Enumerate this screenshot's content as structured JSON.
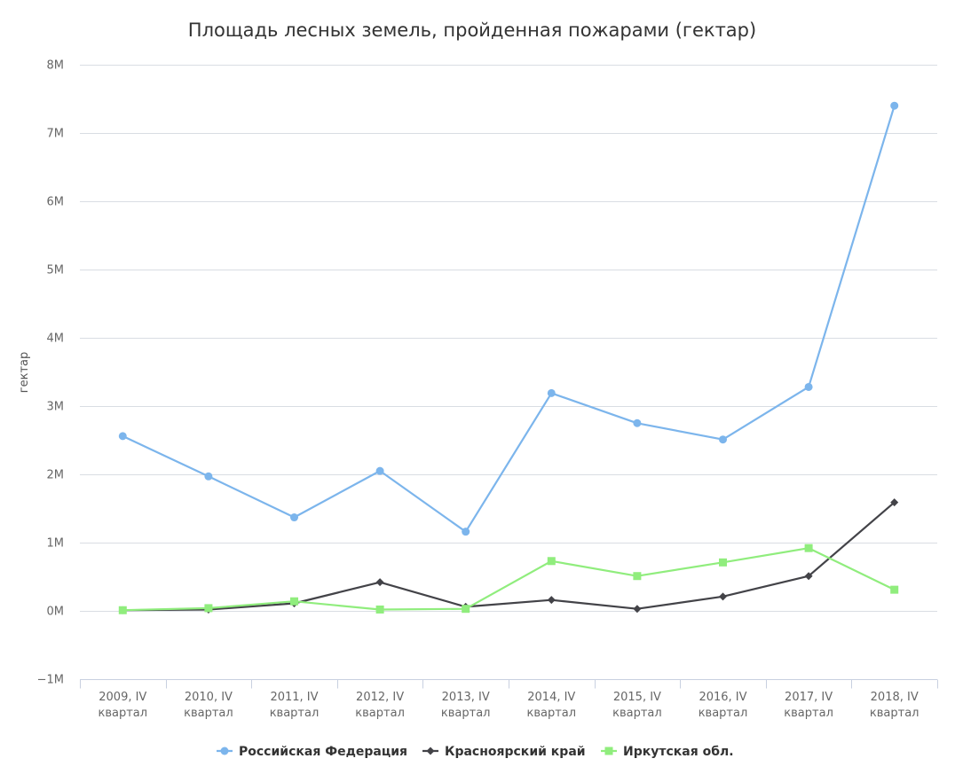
{
  "chart_data": {
    "type": "line",
    "title": "Площадь лесных земель, пройденная пожарами (гектар)",
    "ylabel": "гектар",
    "xlabel": "",
    "categories": [
      [
        "2009, IV",
        "квартал"
      ],
      [
        "2010, IV",
        "квартал"
      ],
      [
        "2011, IV",
        "квартал"
      ],
      [
        "2012, IV",
        "квартал"
      ],
      [
        "2013, IV",
        "квартал"
      ],
      [
        "2014, IV",
        "квартал"
      ],
      [
        "2015, IV",
        "квартал"
      ],
      [
        "2016, IV",
        "квартал"
      ],
      [
        "2017, IV",
        "квартал"
      ],
      [
        "2018, IV",
        "квартал"
      ]
    ],
    "ylim": [
      -1000000,
      8000000
    ],
    "yticks": [
      {
        "value": 8000000,
        "label": "8M"
      },
      {
        "value": 7000000,
        "label": "7M"
      },
      {
        "value": 6000000,
        "label": "6M"
      },
      {
        "value": 5000000,
        "label": "5M"
      },
      {
        "value": 4000000,
        "label": "4M"
      },
      {
        "value": 3000000,
        "label": "3M"
      },
      {
        "value": 2000000,
        "label": "2M"
      },
      {
        "value": 1000000,
        "label": "1M"
      },
      {
        "value": 0,
        "label": "0M"
      },
      {
        "value": -1000000,
        "label": "−1M"
      }
    ],
    "grid": true,
    "legend_position": "bottom",
    "series": [
      {
        "name": "Российская Федерация",
        "color": "#7cb5ec",
        "marker": "circle",
        "values": [
          2560000,
          1970000,
          1370000,
          2050000,
          1160000,
          3190000,
          2750000,
          2510000,
          3280000,
          7400000
        ]
      },
      {
        "name": "Красноярский край",
        "color": "#434348",
        "marker": "diamond",
        "values": [
          10000,
          20000,
          110000,
          420000,
          60000,
          160000,
          30000,
          210000,
          510000,
          1590000
        ]
      },
      {
        "name": "Иркутская обл.",
        "color": "#90ed7d",
        "marker": "square",
        "values": [
          10000,
          40000,
          140000,
          20000,
          30000,
          730000,
          510000,
          710000,
          920000,
          310000
        ]
      }
    ]
  }
}
